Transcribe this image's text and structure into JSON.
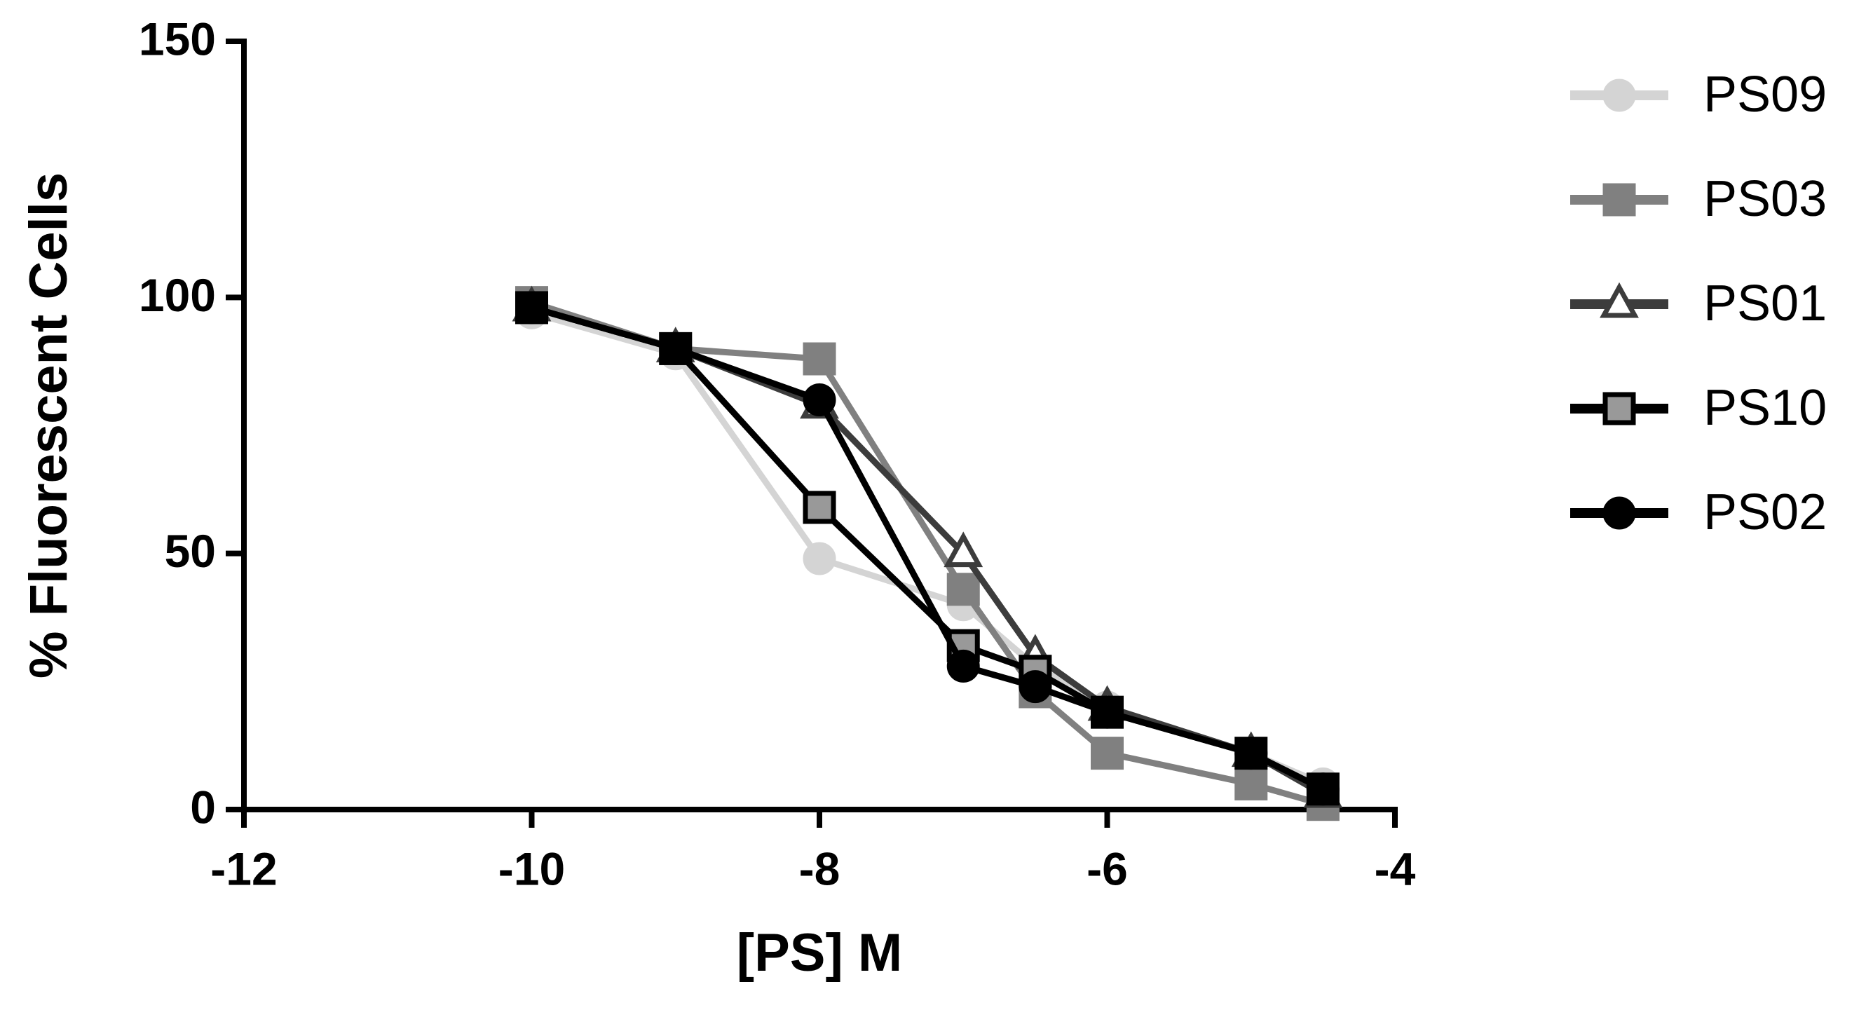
{
  "chart_data": {
    "type": "line",
    "xlabel": "[PS] M",
    "ylabel": "% Fluorescent Cells",
    "x": [
      -10,
      -9,
      -8,
      -7,
      -6.5,
      -6,
      -5,
      -4.5
    ],
    "series": [
      {
        "name": "PS09",
        "color": "#d4d4d4",
        "marker": "circle",
        "marker_fill": "#d4d4d4",
        "values": [
          97,
          89,
          49,
          40,
          28,
          20,
          11,
          5
        ]
      },
      {
        "name": "PS03",
        "color": "#808080",
        "marker": "square",
        "marker_fill": "#808080",
        "values": [
          99,
          90,
          88,
          43,
          23,
          11,
          5,
          1
        ]
      },
      {
        "name": "PS01",
        "color": "#3c3c3c",
        "marker": "triangle",
        "marker_fill": "#ffffff",
        "values": [
          98,
          90,
          79,
          50,
          30,
          20,
          11,
          3
        ]
      },
      {
        "name": "PS10",
        "color": "#000000",
        "marker": "square",
        "marker_fill": "#999999",
        "values": [
          98,
          90,
          59,
          32,
          27,
          19,
          11,
          4
        ]
      },
      {
        "name": "PS02",
        "color": "#000000",
        "marker": "circle",
        "marker_fill": "#000000",
        "values": [
          98,
          90,
          80,
          28,
          24,
          19,
          11,
          4
        ]
      }
    ],
    "xlim": [
      -12,
      -4
    ],
    "xticks": [
      -12,
      -10,
      -8,
      -6,
      -4
    ],
    "ylim": [
      0,
      150
    ],
    "yticks": [
      0,
      50,
      100,
      150
    ],
    "legend": "right",
    "grid": false
  }
}
